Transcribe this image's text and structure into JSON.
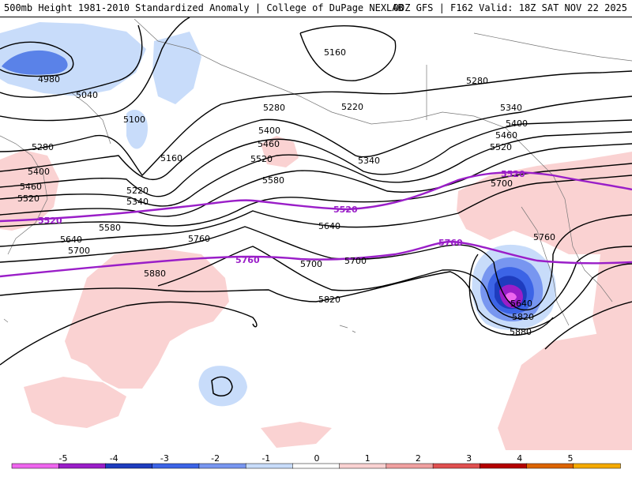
{
  "header": {
    "title_left": "500mb Height 1981-2010 Standardized Anomaly | College of DuPage NEXLAB",
    "title_right": "00Z GFS | F162 Valid: 18Z SAT NOV 22 2025"
  },
  "map": {
    "contour_labels": [
      {
        "id": "c4980",
        "text": "4980"
      },
      {
        "id": "c5040",
        "text": "5040"
      },
      {
        "id": "c5100",
        "text": "5100"
      },
      {
        "id": "c5160a",
        "text": "5160"
      },
      {
        "id": "c5160b",
        "text": "5160"
      },
      {
        "id": "c5220a",
        "text": "5220"
      },
      {
        "id": "c5220b",
        "text": "5220"
      },
      {
        "id": "c5280a",
        "text": "5280"
      },
      {
        "id": "c5280b",
        "text": "5280"
      },
      {
        "id": "c5280c",
        "text": "5280"
      },
      {
        "id": "c5340a",
        "text": "5340"
      },
      {
        "id": "c5340b",
        "text": "5340"
      },
      {
        "id": "c5340c",
        "text": "5340"
      },
      {
        "id": "c5400a",
        "text": "5400"
      },
      {
        "id": "c5400b",
        "text": "5400"
      },
      {
        "id": "c5400c",
        "text": "5400"
      },
      {
        "id": "c5460a",
        "text": "5460"
      },
      {
        "id": "c5460b",
        "text": "5460"
      },
      {
        "id": "c5460c",
        "text": "5460"
      },
      {
        "id": "c5520a",
        "text": "5520"
      },
      {
        "id": "c5520b",
        "text": "5520"
      },
      {
        "id": "c5520c",
        "text": "5520"
      },
      {
        "id": "c5580a",
        "text": "5580"
      },
      {
        "id": "c5580b",
        "text": "5580"
      },
      {
        "id": "c5640a",
        "text": "5640"
      },
      {
        "id": "c5640b",
        "text": "5640"
      },
      {
        "id": "c5640c",
        "text": "5640"
      },
      {
        "id": "c5700a",
        "text": "5700"
      },
      {
        "id": "c5700b",
        "text": "5700"
      },
      {
        "id": "c5700c",
        "text": "5700"
      },
      {
        "id": "c5700d",
        "text": "5700"
      },
      {
        "id": "c5760a",
        "text": "5760"
      },
      {
        "id": "c5760b",
        "text": "5760"
      },
      {
        "id": "c5820a",
        "text": "5820"
      },
      {
        "id": "c5820b",
        "text": "5820"
      },
      {
        "id": "c5880a",
        "text": "5880"
      },
      {
        "id": "c5880b",
        "text": "5880"
      }
    ],
    "highlight_labels": [
      {
        "id": "p5520a",
        "text": "5520"
      },
      {
        "id": "p5520b",
        "text": "5520"
      },
      {
        "id": "p5520c",
        "text": "5520"
      },
      {
        "id": "p5760a",
        "text": "5760"
      },
      {
        "id": "p5760b",
        "text": "5760"
      }
    ],
    "colors": {
      "contour": "#000000",
      "highlight_contour": "#9a1ec8",
      "coast": "#777777"
    }
  },
  "colorbar": {
    "ticks": [
      "-5",
      "-4",
      "-3",
      "-2",
      "-1",
      "0",
      "1",
      "2",
      "3",
      "4",
      "5"
    ],
    "colors": [
      "#ee66ee",
      "#9a1ec8",
      "#1e3cbe",
      "#3c64e6",
      "#7896f0",
      "#c8dcfa",
      "#ffffff",
      "#fad2d2",
      "#f0a0a0",
      "#e05050",
      "#b40000",
      "#dc6400",
      "#f5aa00"
    ]
  }
}
